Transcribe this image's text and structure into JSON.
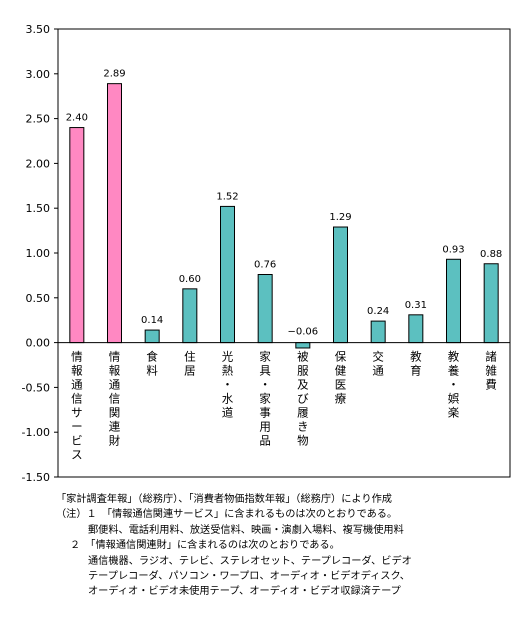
{
  "chart_data": {
    "type": "bar",
    "categories": [
      "情報通信サービス",
      "情報通信関連財",
      "食料",
      "住居",
      "光熱・水道",
      "家具・家事用品",
      "被服及び履き物",
      "保健医療",
      "交通",
      "教育",
      "教養・娯楽",
      "諸雑費"
    ],
    "values": [
      2.4,
      2.89,
      0.14,
      0.6,
      1.52,
      0.76,
      -0.06,
      1.29,
      0.24,
      0.31,
      0.93,
      0.88
    ],
    "value_labels": [
      "2.40",
      "2.89",
      "0.14",
      "0.60",
      "1.52",
      "0.76",
      "−0.06",
      "1.29",
      "0.24",
      "0.31",
      "0.93",
      "0.88"
    ],
    "highlight": [
      true,
      true,
      false,
      false,
      false,
      false,
      false,
      false,
      false,
      false,
      false,
      false
    ],
    "ylim": [
      -1.5,
      3.5
    ],
    "yticks": [
      "3.50",
      "3.00",
      "2.50",
      "2.00",
      "1.50",
      "1.00",
      "0.50",
      "0.00",
      "-0.50",
      "-1.00",
      "-1.50"
    ],
    "ytick_values": [
      3.5,
      3.0,
      2.5,
      2.0,
      1.5,
      1.0,
      0.5,
      0.0,
      -0.5,
      -1.0,
      -1.5
    ],
    "grid": false,
    "legend": "none",
    "title": "",
    "xlabel": "",
    "ylabel": ""
  },
  "colors": {
    "highlight_bar": "#ff88c2",
    "normal_bar": "#5cc0c0",
    "bar_stroke": "#000000",
    "plot_background": "#ffffff",
    "axis": "#000000"
  },
  "notes": {
    "source": "「家計調査年報」（総務庁）、「消費者物価指数年報」（総務庁）により作成",
    "note1_heading": "（注）１　「情報通信関連サービス」に含まれるものは次のとおりである。",
    "note1_body": "郵便料、電話利用料、放送受信料、映画・演劇入場料、複写機使用料",
    "note2_heading": "２　「情報通信関連財」に含まれるのは次のとおりである。",
    "note2_body_1": "通信機器、ラジオ、テレビ、ステレオセット、テープレコーダ、ビデオ",
    "note2_body_2": "テープレコーダ、パソコン・ワープロ、オーディオ・ビデオディスク、",
    "note2_body_3": "オーディオ・ビデオ未使用テープ、オーディオ・ビデオ収録済テープ"
  }
}
